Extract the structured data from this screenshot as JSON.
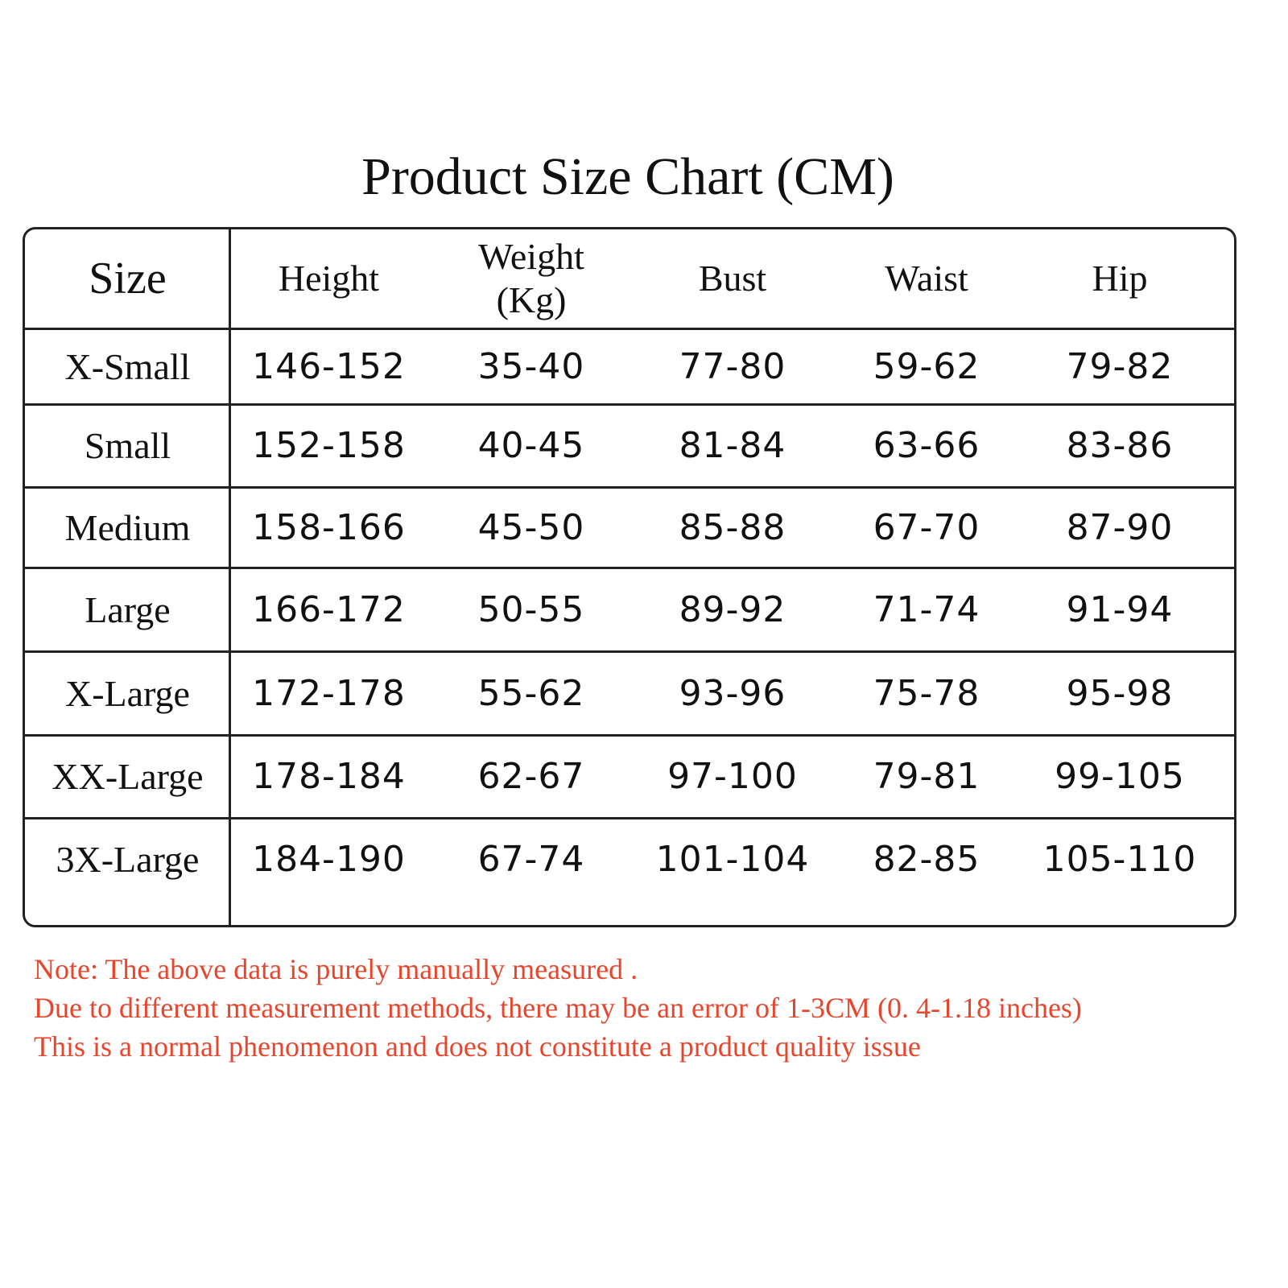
{
  "header": {
    "title": "Product Size Chart (CM)"
  },
  "table": {
    "columns": [
      "Size",
      "Height",
      "Weight (Kg)",
      "Bust",
      "Waist",
      "Hip"
    ],
    "rows": [
      [
        "X-Small",
        "146-152",
        "35-40",
        "77-80",
        "59-62",
        "79-82"
      ],
      [
        "Small",
        "152-158",
        "40-45",
        "81-84",
        "63-66",
        "83-86"
      ],
      [
        "Medium",
        "158-166",
        "45-50",
        "85-88",
        "67-70",
        "87-90"
      ],
      [
        "Large",
        "166-172",
        "50-55",
        "89-92",
        "71-74",
        "91-94"
      ],
      [
        "X-Large",
        "172-178",
        "55-62",
        "93-96",
        "75-78",
        "95-98"
      ],
      [
        "XX-Large",
        "178-184",
        "62-67",
        "97-100",
        "79-81",
        "99-105"
      ],
      [
        "3X-Large",
        "184-190",
        "67-74",
        "101-104",
        "82-85",
        "105-110"
      ]
    ]
  },
  "notes": [
    "Note: The above data is purely manually measured .",
    "Due to different measurement methods, there may be an error of 1-3CM (0. 4-1.18 inches)",
    "This is a normal phenomenon and does not constitute a product quality issue"
  ]
}
